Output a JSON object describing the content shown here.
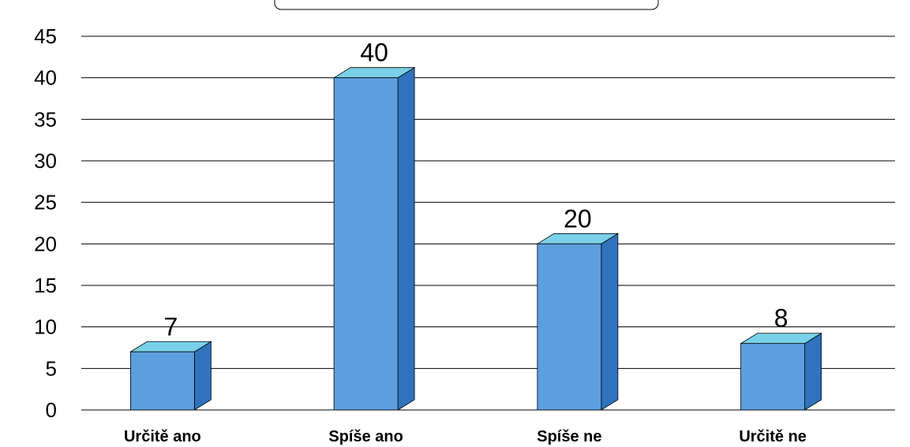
{
  "chart_data": {
    "type": "bar",
    "title": "",
    "xlabel": "",
    "ylabel": "",
    "categories": [
      "Určitě ano",
      "Spíše ano",
      "Spíše ne",
      "Určitě ne"
    ],
    "values": [
      7,
      40,
      20,
      8
    ],
    "data_labels": [
      "7",
      "40",
      "20",
      "8"
    ],
    "ylim": [
      0,
      45
    ],
    "yticks": [
      "0",
      "5",
      "10",
      "15",
      "20",
      "25",
      "30",
      "35",
      "40",
      "45"
    ],
    "grid": "horizontal",
    "legend": "none",
    "style": "3d-column"
  },
  "colors": {
    "bar_front": "#5c9fdf",
    "bar_top": "#79d0e8",
    "bar_side": "#2e73bc",
    "grid": "#000000"
  }
}
